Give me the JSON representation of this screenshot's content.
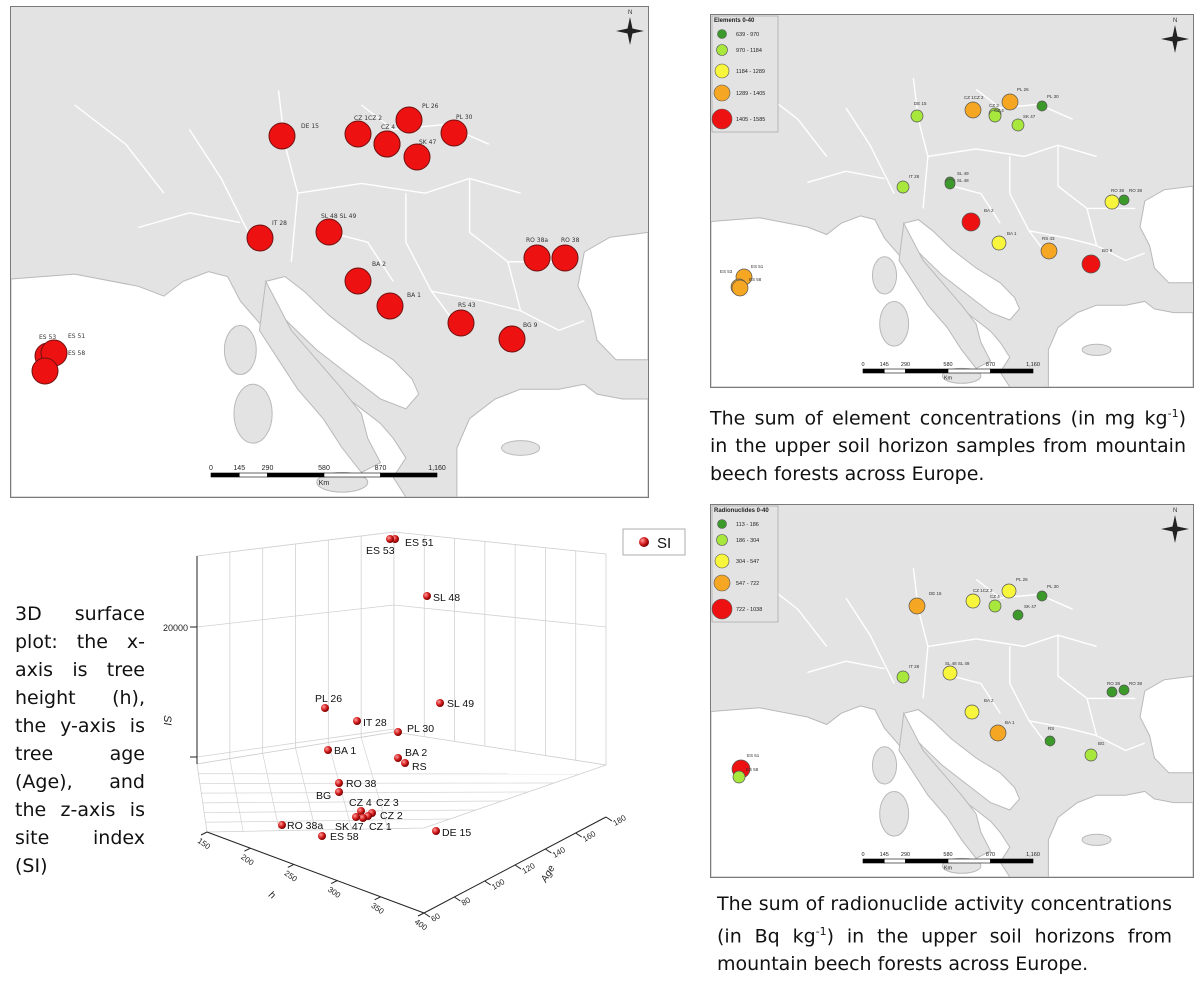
{
  "map_main": {
    "points": [
      {
        "id": "DE 15",
        "level": 5
      },
      {
        "id": "CZ 1",
        "level": 5
      },
      {
        "id": "CZ 2",
        "level": 5
      },
      {
        "id": "CZ 4",
        "level": 5
      },
      {
        "id": "PL 26",
        "level": 5
      },
      {
        "id": "PL 30",
        "level": 5
      },
      {
        "id": "SK 47",
        "level": 5
      },
      {
        "id": "IT 28",
        "level": 5
      },
      {
        "id": "SL 48 SL 49",
        "level": 5
      },
      {
        "id": "BA 2",
        "level": 5
      },
      {
        "id": "BA 1",
        "level": 5
      },
      {
        "id": "RO 38a",
        "level": 5
      },
      {
        "id": "RO 38",
        "level": 5
      },
      {
        "id": "RS 43",
        "level": 5
      },
      {
        "id": "BG 9",
        "level": 5
      },
      {
        "id": "ES 53",
        "level": 5
      },
      {
        "id": "ES 51",
        "level": 5
      },
      {
        "id": "ES 58",
        "level": 5
      }
    ],
    "scale_labels": [
      "0",
      "145",
      "290",
      "580",
      "870",
      "1,160"
    ],
    "scale_unit": "Km",
    "north_label": "N"
  },
  "map_elements": {
    "legend_title": "Elements 0-40",
    "legend": [
      {
        "label": "639 - 970",
        "color": "#3c9a2a"
      },
      {
        "label": "970 - 1184",
        "color": "#a8e83c"
      },
      {
        "label": "1184 - 1289",
        "color": "#f7f53c"
      },
      {
        "label": "1289 - 1405",
        "color": "#f5a623"
      },
      {
        "label": "1405 - 1585",
        "color": "#ee1111"
      }
    ],
    "points": [
      {
        "id": "DE 15",
        "level": 2
      },
      {
        "id": "CZ 1CZ 2",
        "level": 4
      },
      {
        "id": "CZ 3",
        "level": 2
      },
      {
        "id": "PL 26",
        "level": 4
      },
      {
        "id": "PL 30",
        "level": 1
      },
      {
        "id": "CZ 4",
        "level": 2
      },
      {
        "id": "SK 47",
        "level": 2
      },
      {
        "id": "IT 28",
        "level": 2
      },
      {
        "id": "SL 49",
        "level": 1
      },
      {
        "id": "SL 48",
        "level": 1
      },
      {
        "id": "BA 2",
        "level": 5
      },
      {
        "id": "BA 1",
        "level": 3
      },
      {
        "id": "RS 43",
        "level": 4
      },
      {
        "id": "BG 9",
        "level": 5
      },
      {
        "id": "RO 38",
        "level": 3
      },
      {
        "id": "RO 38",
        "level": 1
      },
      {
        "id": "ES 51",
        "level": 4
      },
      {
        "id": "ES 53",
        "level": 4
      },
      {
        "id": "ES 58",
        "level": 4
      }
    ],
    "scale_labels": [
      "0",
      "145",
      "290",
      "580",
      "870",
      "1,160"
    ],
    "scale_unit": "Km",
    "north_label": "N"
  },
  "map_radionuclides": {
    "legend_title": "Radionuclides 0-40",
    "legend": [
      {
        "label": "113 - 186",
        "color": "#3c9a2a"
      },
      {
        "label": "186 - 304",
        "color": "#a8e83c"
      },
      {
        "label": "304 - 547",
        "color": "#f7f53c"
      },
      {
        "label": "547 - 722",
        "color": "#f5a623"
      },
      {
        "label": "722 - 1038",
        "color": "#ee1111"
      }
    ],
    "points": [
      {
        "id": "DE 15",
        "level": 4
      },
      {
        "id": "CZ 1CZ 2",
        "level": 3
      },
      {
        "id": "PL 26",
        "level": 3
      },
      {
        "id": "CZ 4",
        "level": 2
      },
      {
        "id": "PL 30",
        "level": 1
      },
      {
        "id": "SK 47",
        "level": 1
      },
      {
        "id": "IT 28",
        "level": 2
      },
      {
        "id": "SL 48 SL 49",
        "level": 3
      },
      {
        "id": "BA 2",
        "level": 3
      },
      {
        "id": "BA 1",
        "level": 4
      },
      {
        "id": "RS",
        "level": 1
      },
      {
        "id": "BG",
        "level": 2
      },
      {
        "id": "RO 38",
        "level": 1
      },
      {
        "id": "RO 38",
        "level": 1
      },
      {
        "id": "ES 51",
        "level": 5
      },
      {
        "id": "ES 58",
        "level": 2
      }
    ],
    "scale_labels": [
      "0",
      "145",
      "290",
      "580",
      "870",
      "1,160"
    ],
    "scale_unit": "Km",
    "north_label": "N"
  },
  "captions": {
    "elements": {
      "pre": "The sum of element concentrations (in mg kg",
      "sup": "-1",
      "post": ") in the upper soil horizon samples from mountain beech forests across Europe."
    },
    "radionuclides": {
      "pre": "The sum of radionuclide activity concentrations (in Bq kg",
      "sup": "-1",
      "post": ") in the upper soil horizons from mountain beech forests across Europe."
    },
    "plot_description": "3D surface plot: the x-axis is tree height (h), the y-axis is tree age (Age), and the z-axis is site index (SI)"
  },
  "chart_data": {
    "type": "scatter",
    "legend": "SI",
    "xlabel": "h",
    "ylabel": "Age",
    "zlabel": "SI",
    "x_ticks": [
      "150",
      "200",
      "250",
      "300",
      "350",
      "400"
    ],
    "y_ticks": [
      "60",
      "80",
      "100",
      "120",
      "140",
      "160",
      "180"
    ],
    "z_ticks": [
      "20000"
    ],
    "points": [
      {
        "label": "ES 51"
      },
      {
        "label": "ES 53"
      },
      {
        "label": "SL 48"
      },
      {
        "label": "PL 26"
      },
      {
        "label": "IT 28"
      },
      {
        "label": "SL 49"
      },
      {
        "label": "PL 30"
      },
      {
        "label": "BA 1"
      },
      {
        "label": "BA 2"
      },
      {
        "label": "RS"
      },
      {
        "label": "RO 38"
      },
      {
        "label": "BG"
      },
      {
        "label": "CZ 4"
      },
      {
        "label": "CZ 3"
      },
      {
        "label": "CZ 2"
      },
      {
        "label": "CZ 1"
      },
      {
        "label": "SK 47"
      },
      {
        "label": "RO 38a"
      },
      {
        "label": "ES 58"
      },
      {
        "label": "DE 15"
      }
    ]
  }
}
